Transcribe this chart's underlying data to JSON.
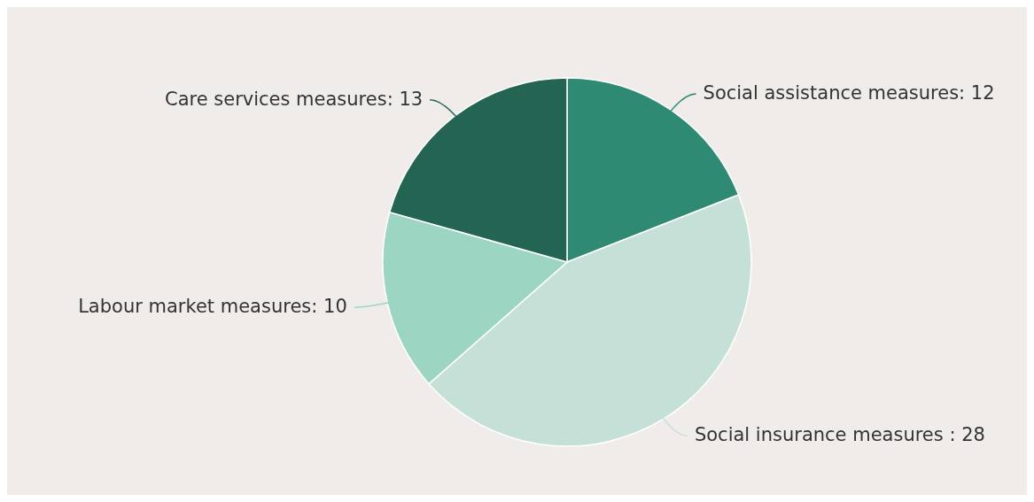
{
  "chart_data": {
    "type": "pie",
    "categories": [
      "Social assistance measures",
      "Social insurance measures ",
      "Labour market measures",
      "Care services measures"
    ],
    "values": [
      12,
      28,
      10,
      13
    ],
    "value_labels": [
      ": 12",
      ": 28",
      ": 10",
      ": 13"
    ],
    "colors": [
      "#2f8a73",
      "#c5e1d7",
      "#9dd5c3",
      "#236452"
    ]
  }
}
